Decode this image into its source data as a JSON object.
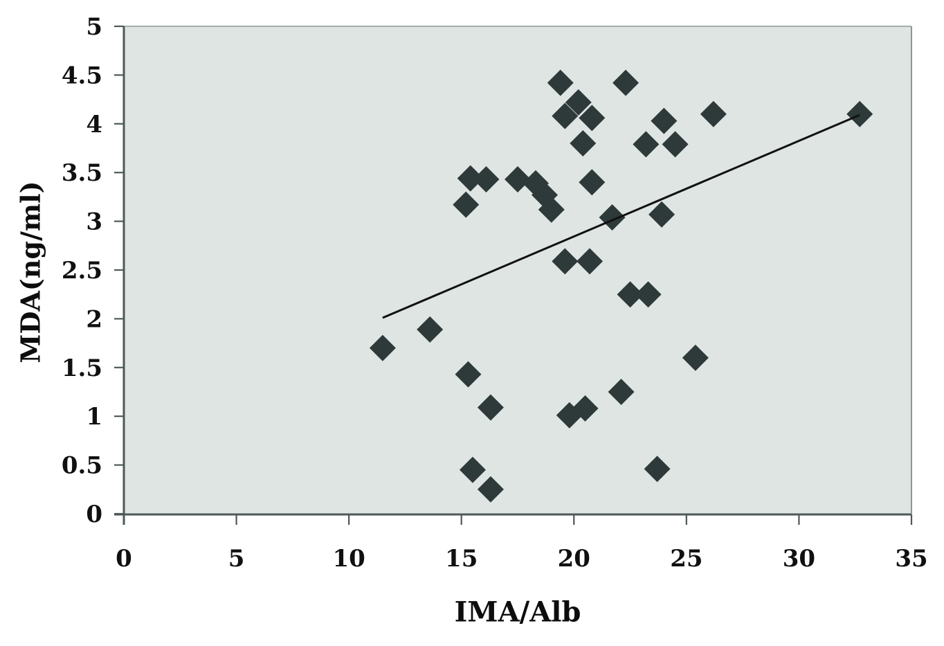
{
  "chart_data": {
    "type": "scatter",
    "title": "",
    "xlabel": "IMA/Alb",
    "ylabel": "MDA(ng/ml)",
    "xlim": [
      0,
      35
    ],
    "ylim": [
      0,
      5
    ],
    "x_ticks": [
      0,
      5,
      10,
      15,
      20,
      25,
      30,
      35
    ],
    "y_ticks": [
      0,
      0.5,
      1,
      1.5,
      2,
      2.5,
      3,
      3.5,
      4,
      4.5,
      5
    ],
    "grid": false,
    "legend_position": "none",
    "marker_shape": "diamond",
    "points": [
      [
        19.4,
        4.42
      ],
      [
        22.3,
        4.42
      ],
      [
        20.2,
        4.22
      ],
      [
        19.6,
        4.08
      ],
      [
        20.8,
        4.06
      ],
      [
        24.0,
        4.03
      ],
      [
        26.2,
        4.1
      ],
      [
        32.7,
        4.1
      ],
      [
        20.4,
        3.8
      ],
      [
        23.2,
        3.79
      ],
      [
        24.5,
        3.79
      ],
      [
        15.4,
        3.44
      ],
      [
        16.1,
        3.43
      ],
      [
        15.2,
        3.17
      ],
      [
        17.5,
        3.43
      ],
      [
        18.3,
        3.39
      ],
      [
        18.7,
        3.27
      ],
      [
        19.0,
        3.12
      ],
      [
        20.8,
        3.4
      ],
      [
        21.7,
        3.04
      ],
      [
        23.9,
        3.07
      ],
      [
        19.6,
        2.59
      ],
      [
        20.7,
        2.59
      ],
      [
        22.5,
        2.25
      ],
      [
        23.3,
        2.25
      ],
      [
        25.4,
        1.6
      ],
      [
        22.1,
        1.25
      ],
      [
        11.5,
        1.7
      ],
      [
        13.6,
        1.89
      ],
      [
        15.3,
        1.43
      ],
      [
        16.3,
        1.09
      ],
      [
        19.8,
        1.01
      ],
      [
        20.5,
        1.08
      ],
      [
        15.5,
        0.45
      ],
      [
        16.3,
        0.25
      ],
      [
        23.7,
        0.46
      ]
    ],
    "trendline": {
      "x1": 11.5,
      "y1": 2.01,
      "x2": 32.7,
      "y2": 4.09
    },
    "colors": {
      "plot_bg": "#dee5e2",
      "marker": "#2e3939",
      "trendline": "#111111",
      "axis_line": "#4d5858",
      "frame_border": "#8a9795",
      "text": "#101010",
      "page_bg": "#ffffff"
    }
  }
}
